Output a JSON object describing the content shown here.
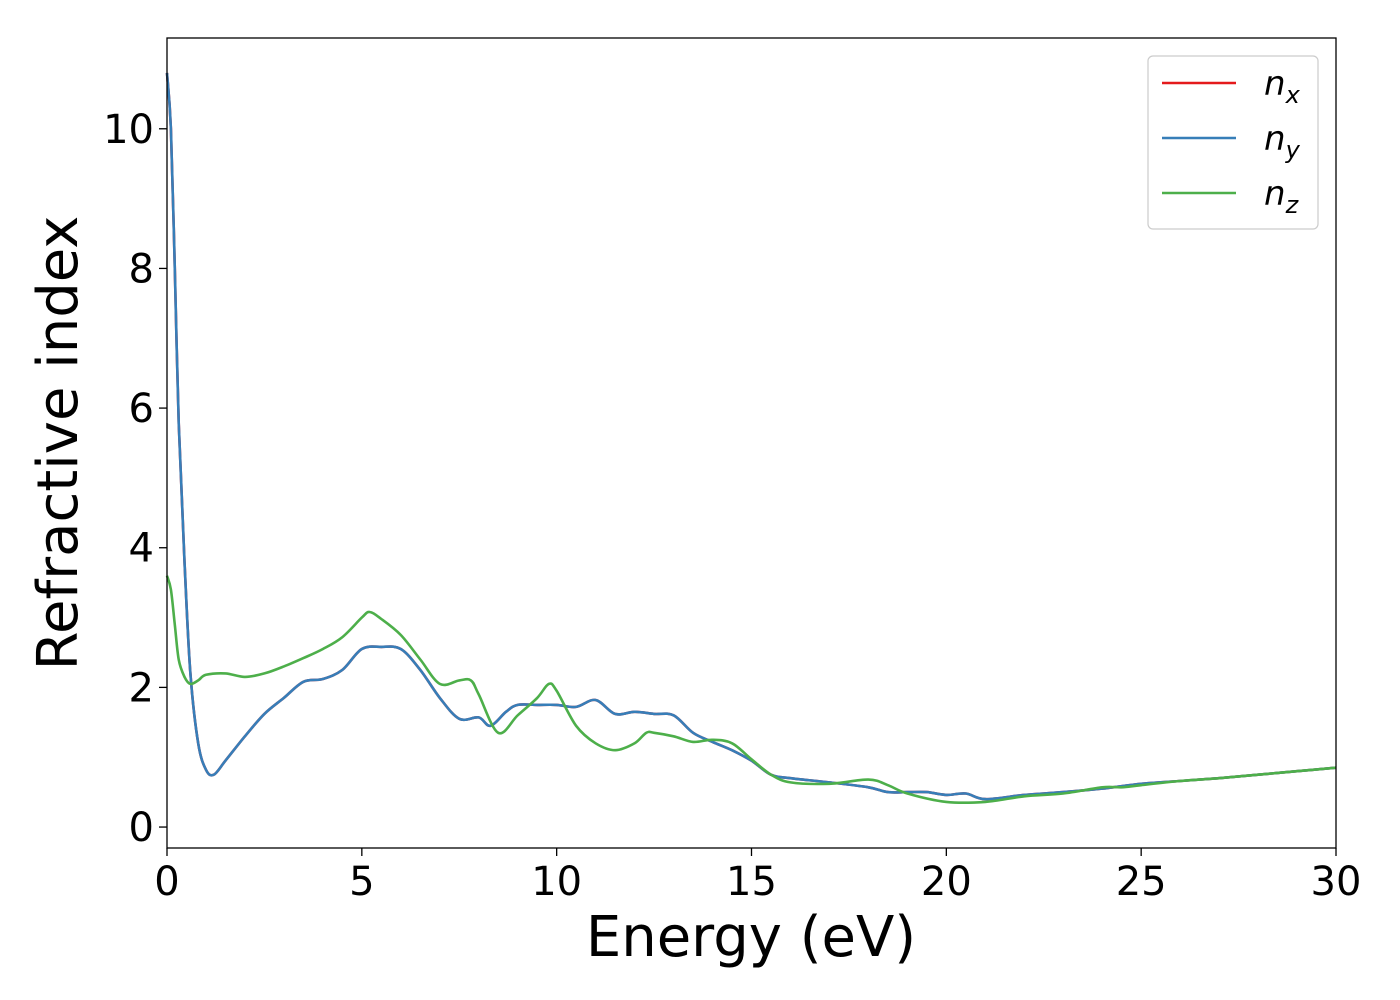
{
  "chart_data": {
    "type": "line",
    "title": "",
    "xlabel": "Energy (eV)",
    "ylabel": "Refractive index",
    "xlim": [
      0,
      30
    ],
    "ylim": [
      -0.3,
      11.3
    ],
    "xticks": [
      0,
      5,
      10,
      15,
      20,
      25,
      30
    ],
    "yticks": [
      0,
      2,
      4,
      6,
      8,
      10
    ],
    "grid": false,
    "legend_position": "top-right",
    "series": [
      {
        "name": "n",
        "subscript": "x",
        "color": "#e41a1c",
        "x": [
          0,
          0.1,
          0.2,
          0.3,
          0.45,
          0.6,
          0.8,
          1.0,
          1.2,
          1.5,
          2.0,
          2.5,
          3.0,
          3.5,
          4.0,
          4.5,
          5.0,
          5.5,
          6.0,
          6.5,
          7.0,
          7.5,
          8.0,
          8.3,
          8.7,
          9.0,
          9.5,
          10.0,
          10.5,
          11.0,
          11.5,
          12.0,
          12.5,
          13.0,
          13.5,
          14.0,
          14.5,
          15.0,
          15.5,
          16.0,
          17.0,
          18.0,
          18.5,
          19.0,
          19.5,
          20.0,
          20.5,
          21.0,
          22.0,
          23.0,
          24.0,
          25.0,
          26.0,
          27.0,
          28.0,
          29.0,
          30.0
        ],
        "y": [
          10.8,
          10.0,
          8.0,
          5.8,
          3.8,
          2.2,
          1.2,
          0.82,
          0.75,
          0.95,
          1.3,
          1.62,
          1.85,
          2.08,
          2.12,
          2.25,
          2.55,
          2.58,
          2.55,
          2.25,
          1.85,
          1.55,
          1.57,
          1.45,
          1.65,
          1.75,
          1.75,
          1.75,
          1.72,
          1.82,
          1.62,
          1.65,
          1.62,
          1.6,
          1.35,
          1.22,
          1.1,
          0.95,
          0.75,
          0.7,
          0.64,
          0.57,
          0.5,
          0.5,
          0.5,
          0.46,
          0.48,
          0.4,
          0.46,
          0.5,
          0.55,
          0.62,
          0.66,
          0.7,
          0.75,
          0.8,
          0.85
        ]
      },
      {
        "name": "n",
        "subscript": "y",
        "color": "#377eb8",
        "x": [
          0,
          0.1,
          0.2,
          0.3,
          0.45,
          0.6,
          0.8,
          1.0,
          1.2,
          1.5,
          2.0,
          2.5,
          3.0,
          3.5,
          4.0,
          4.5,
          5.0,
          5.5,
          6.0,
          6.5,
          7.0,
          7.5,
          8.0,
          8.3,
          8.7,
          9.0,
          9.5,
          10.0,
          10.5,
          11.0,
          11.5,
          12.0,
          12.5,
          13.0,
          13.5,
          14.0,
          14.5,
          15.0,
          15.5,
          16.0,
          17.0,
          18.0,
          18.5,
          19.0,
          19.5,
          20.0,
          20.5,
          21.0,
          22.0,
          23.0,
          24.0,
          25.0,
          26.0,
          27.0,
          28.0,
          29.0,
          30.0
        ],
        "y": [
          10.8,
          10.0,
          8.0,
          5.8,
          3.8,
          2.2,
          1.2,
          0.82,
          0.75,
          0.95,
          1.3,
          1.62,
          1.85,
          2.08,
          2.12,
          2.25,
          2.55,
          2.58,
          2.55,
          2.25,
          1.85,
          1.55,
          1.57,
          1.45,
          1.65,
          1.75,
          1.75,
          1.75,
          1.72,
          1.82,
          1.62,
          1.65,
          1.62,
          1.6,
          1.35,
          1.22,
          1.1,
          0.95,
          0.75,
          0.7,
          0.64,
          0.57,
          0.5,
          0.5,
          0.5,
          0.46,
          0.48,
          0.4,
          0.46,
          0.5,
          0.55,
          0.62,
          0.66,
          0.7,
          0.75,
          0.8,
          0.85
        ]
      },
      {
        "name": "n",
        "subscript": "z",
        "color": "#4daf4a",
        "x": [
          0,
          0.1,
          0.2,
          0.3,
          0.45,
          0.6,
          0.8,
          1.0,
          1.5,
          2.0,
          2.5,
          3.0,
          3.5,
          4.0,
          4.5,
          5.0,
          5.2,
          5.5,
          6.0,
          6.5,
          7.0,
          7.5,
          7.8,
          8.0,
          8.5,
          9.0,
          9.5,
          9.8,
          10.0,
          10.5,
          11.0,
          11.5,
          12.0,
          12.3,
          12.5,
          13.0,
          13.5,
          14.0,
          14.5,
          15.0,
          15.5,
          16.0,
          17.0,
          18.0,
          18.5,
          19.0,
          20.0,
          21.0,
          22.0,
          23.0,
          24.0,
          24.5,
          25.0,
          26.0,
          27.0,
          28.0,
          29.0,
          30.0
        ],
        "y": [
          3.6,
          3.4,
          2.9,
          2.4,
          2.15,
          2.05,
          2.1,
          2.18,
          2.2,
          2.15,
          2.2,
          2.3,
          2.42,
          2.55,
          2.72,
          3.0,
          3.08,
          2.98,
          2.75,
          2.4,
          2.05,
          2.1,
          2.1,
          1.9,
          1.35,
          1.6,
          1.85,
          2.05,
          1.95,
          1.45,
          1.2,
          1.1,
          1.2,
          1.35,
          1.35,
          1.3,
          1.22,
          1.25,
          1.2,
          0.97,
          0.75,
          0.64,
          0.62,
          0.68,
          0.6,
          0.48,
          0.36,
          0.36,
          0.44,
          0.48,
          0.57,
          0.57,
          0.6,
          0.66,
          0.7,
          0.75,
          0.8,
          0.85
        ]
      }
    ]
  }
}
